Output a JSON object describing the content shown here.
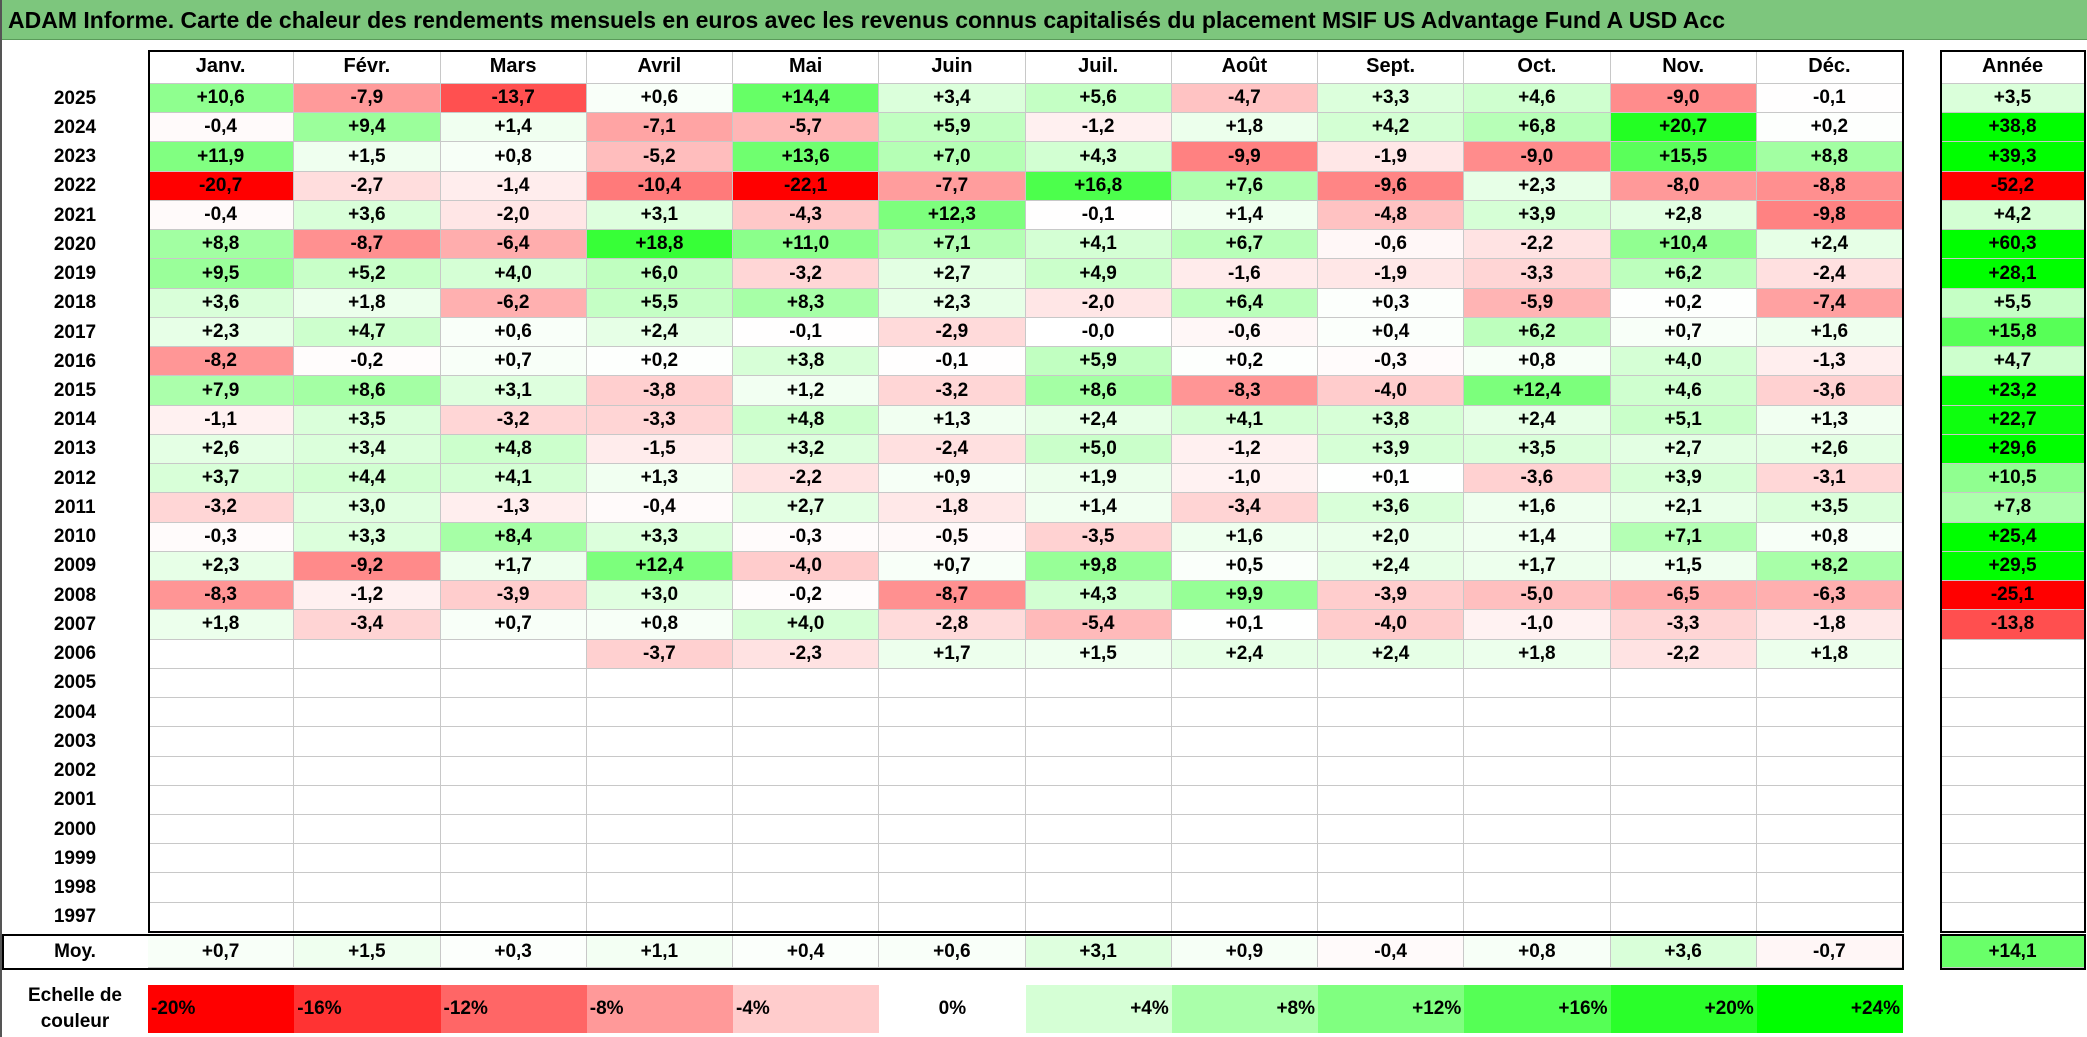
{
  "title": "ADAM Informe. Carte de chaleur des rendements mensuels en euros avec les revenus connus capitalisés du placement MSIF US Advantage Fund A USD Acc",
  "chart_data": {
    "type": "heatmap",
    "title": "ADAM Informe. Carte de chaleur des rendements mensuels en euros avec les revenus connus capitalisés du placement MSIF US Advantage Fund A USD Acc",
    "months": [
      "Janv.",
      "Févr.",
      "Mars",
      "Avril",
      "Mai",
      "Juin",
      "Juil.",
      "Août",
      "Sept.",
      "Oct.",
      "Nov.",
      "Déc."
    ],
    "year_header": "Année",
    "rows": [
      {
        "year": "2025",
        "values": [
          "+10,6",
          "-7,9",
          "-13,7",
          "+0,6",
          "+14,4",
          "+3,4",
          "+5,6",
          "-4,7",
          "+3,3",
          "+4,6",
          "-9,0",
          "-0,1"
        ],
        "annual": "+3,5"
      },
      {
        "year": "2024",
        "values": [
          "-0,4",
          "+9,4",
          "+1,4",
          "-7,1",
          "-5,7",
          "+5,9",
          "-1,2",
          "+1,8",
          "+4,2",
          "+6,8",
          "+20,7",
          "+0,2"
        ],
        "annual": "+38,8"
      },
      {
        "year": "2023",
        "values": [
          "+11,9",
          "+1,5",
          "+0,8",
          "-5,2",
          "+13,6",
          "+7,0",
          "+4,3",
          "-9,9",
          "-1,9",
          "-9,0",
          "+15,5",
          "+8,8"
        ],
        "annual": "+39,3"
      },
      {
        "year": "2022",
        "values": [
          "-20,7",
          "-2,7",
          "-1,4",
          "-10,4",
          "-22,1",
          "-7,7",
          "+16,8",
          "+7,6",
          "-9,6",
          "+2,3",
          "-8,0",
          "-8,8"
        ],
        "annual": "-52,2"
      },
      {
        "year": "2021",
        "values": [
          "-0,4",
          "+3,6",
          "-2,0",
          "+3,1",
          "-4,3",
          "+12,3",
          "-0,1",
          "+1,4",
          "-4,8",
          "+3,9",
          "+2,8",
          "-9,8"
        ],
        "annual": "+4,2"
      },
      {
        "year": "2020",
        "values": [
          "+8,8",
          "-8,7",
          "-6,4",
          "+18,8",
          "+11,0",
          "+7,1",
          "+4,1",
          "+6,7",
          "-0,6",
          "-2,2",
          "+10,4",
          "+2,4"
        ],
        "annual": "+60,3"
      },
      {
        "year": "2019",
        "values": [
          "+9,5",
          "+5,2",
          "+4,0",
          "+6,0",
          "-3,2",
          "+2,7",
          "+4,9",
          "-1,6",
          "-1,9",
          "-3,3",
          "+6,2",
          "-2,4"
        ],
        "annual": "+28,1"
      },
      {
        "year": "2018",
        "values": [
          "+3,6",
          "+1,8",
          "-6,2",
          "+5,5",
          "+8,3",
          "+2,3",
          "-2,0",
          "+6,4",
          "+0,3",
          "-5,9",
          "+0,2",
          "-7,4"
        ],
        "annual": "+5,5"
      },
      {
        "year": "2017",
        "values": [
          "+2,3",
          "+4,7",
          "+0,6",
          "+2,4",
          "-0,1",
          "-2,9",
          "-0,0",
          "-0,6",
          "+0,4",
          "+6,2",
          "+0,7",
          "+1,6"
        ],
        "annual": "+15,8"
      },
      {
        "year": "2016",
        "values": [
          "-8,2",
          "-0,2",
          "+0,7",
          "+0,2",
          "+3,8",
          "-0,1",
          "+5,9",
          "+0,2",
          "-0,3",
          "+0,8",
          "+4,0",
          "-1,3"
        ],
        "annual": "+4,7"
      },
      {
        "year": "2015",
        "values": [
          "+7,9",
          "+8,6",
          "+3,1",
          "-3,8",
          "+1,2",
          "-3,2",
          "+8,6",
          "-8,3",
          "-4,0",
          "+12,4",
          "+4,6",
          "-3,6"
        ],
        "annual": "+23,2"
      },
      {
        "year": "2014",
        "values": [
          "-1,1",
          "+3,5",
          "-3,2",
          "-3,3",
          "+4,8",
          "+1,3",
          "+2,4",
          "+4,1",
          "+3,8",
          "+2,4",
          "+5,1",
          "+1,3"
        ],
        "annual": "+22,7"
      },
      {
        "year": "2013",
        "values": [
          "+2,6",
          "+3,4",
          "+4,8",
          "-1,5",
          "+3,2",
          "-2,4",
          "+5,0",
          "-1,2",
          "+3,9",
          "+3,5",
          "+2,7",
          "+2,6"
        ],
        "annual": "+29,6"
      },
      {
        "year": "2012",
        "values": [
          "+3,7",
          "+4,4",
          "+4,1",
          "+1,3",
          "-2,2",
          "+0,9",
          "+1,9",
          "-1,0",
          "+0,1",
          "-3,6",
          "+3,9",
          "-3,1"
        ],
        "annual": "+10,5"
      },
      {
        "year": "2011",
        "values": [
          "-3,2",
          "+3,0",
          "-1,3",
          "-0,4",
          "+2,7",
          "-1,8",
          "+1,4",
          "-3,4",
          "+3,6",
          "+1,6",
          "+2,1",
          "+3,5"
        ],
        "annual": "+7,8"
      },
      {
        "year": "2010",
        "values": [
          "-0,3",
          "+3,3",
          "+8,4",
          "+3,3",
          "-0,3",
          "-0,5",
          "-3,5",
          "+1,6",
          "+2,0",
          "+1,4",
          "+7,1",
          "+0,8"
        ],
        "annual": "+25,4"
      },
      {
        "year": "2009",
        "values": [
          "+2,3",
          "-9,2",
          "+1,7",
          "+12,4",
          "-4,0",
          "+0,7",
          "+9,8",
          "+0,5",
          "+2,4",
          "+1,7",
          "+1,5",
          "+8,2"
        ],
        "annual": "+29,5"
      },
      {
        "year": "2008",
        "values": [
          "-8,3",
          "-1,2",
          "-3,9",
          "+3,0",
          "-0,2",
          "-8,7",
          "+4,3",
          "+9,9",
          "-3,9",
          "-5,0",
          "-6,5",
          "-6,3"
        ],
        "annual": "-25,1"
      },
      {
        "year": "2007",
        "values": [
          "+1,8",
          "-3,4",
          "+0,7",
          "+0,8",
          "+4,0",
          "-2,8",
          "-5,4",
          "+0,1",
          "-4,0",
          "-1,0",
          "-3,3",
          "-1,8"
        ],
        "annual": "-13,8"
      },
      {
        "year": "2006",
        "values": [
          "",
          "",
          "",
          "-3,7",
          "-2,3",
          "+1,7",
          "+1,5",
          "+2,4",
          "+2,4",
          "+1,8",
          "-2,2",
          "+1,8"
        ],
        "annual": ""
      },
      {
        "year": "2005",
        "values": [
          "",
          "",
          "",
          "",
          "",
          "",
          "",
          "",
          "",
          "",
          "",
          ""
        ],
        "annual": ""
      },
      {
        "year": "2004",
        "values": [
          "",
          "",
          "",
          "",
          "",
          "",
          "",
          "",
          "",
          "",
          "",
          ""
        ],
        "annual": ""
      },
      {
        "year": "2003",
        "values": [
          "",
          "",
          "",
          "",
          "",
          "",
          "",
          "",
          "",
          "",
          "",
          ""
        ],
        "annual": ""
      },
      {
        "year": "2002",
        "values": [
          "",
          "",
          "",
          "",
          "",
          "",
          "",
          "",
          "",
          "",
          "",
          ""
        ],
        "annual": ""
      },
      {
        "year": "2001",
        "values": [
          "",
          "",
          "",
          "",
          "",
          "",
          "",
          "",
          "",
          "",
          "",
          ""
        ],
        "annual": ""
      },
      {
        "year": "2000",
        "values": [
          "",
          "",
          "",
          "",
          "",
          "",
          "",
          "",
          "",
          "",
          "",
          ""
        ],
        "annual": ""
      },
      {
        "year": "1999",
        "values": [
          "",
          "",
          "",
          "",
          "",
          "",
          "",
          "",
          "",
          "",
          "",
          ""
        ],
        "annual": ""
      },
      {
        "year": "1998",
        "values": [
          "",
          "",
          "",
          "",
          "",
          "",
          "",
          "",
          "",
          "",
          "",
          ""
        ],
        "annual": ""
      },
      {
        "year": "1997",
        "values": [
          "",
          "",
          "",
          "",
          "",
          "",
          "",
          "",
          "",
          "",
          "",
          ""
        ],
        "annual": ""
      }
    ],
    "average": {
      "label": "Moy.",
      "values": [
        "+0,7",
        "+1,5",
        "+0,3",
        "+1,1",
        "+0,4",
        "+0,6",
        "+3,1",
        "+0,9",
        "-0,4",
        "+0,8",
        "+3,6",
        "-0,7"
      ],
      "annual": "+14,1"
    },
    "legend": {
      "label": "Echelle de couleur",
      "steps": [
        {
          "label": "-20%",
          "value": -20,
          "color": "#FF0000"
        },
        {
          "label": "-16%",
          "value": -16,
          "color": "#FF3333"
        },
        {
          "label": "-12%",
          "value": -12,
          "color": "#FF6666"
        },
        {
          "label": "-8%",
          "value": -8,
          "color": "#FF9999"
        },
        {
          "label": "-4%",
          "value": -4,
          "color": "#FFCCCC"
        },
        {
          "label": "0%",
          "value": 0,
          "color": "#FFFFFF"
        },
        {
          "label": "+4%",
          "value": 4,
          "color": "#D5FFD5"
        },
        {
          "label": "+8%",
          "value": 8,
          "color": "#AAFFAA"
        },
        {
          "label": "+12%",
          "value": 12,
          "color": "#80FF80"
        },
        {
          "label": "+16%",
          "value": 16,
          "color": "#55FF55"
        },
        {
          "label": "+20%",
          "value": 20,
          "color": "#2AFF2A"
        },
        {
          "label": "+24%",
          "value": 24,
          "color": "#00FF00"
        }
      ]
    }
  }
}
